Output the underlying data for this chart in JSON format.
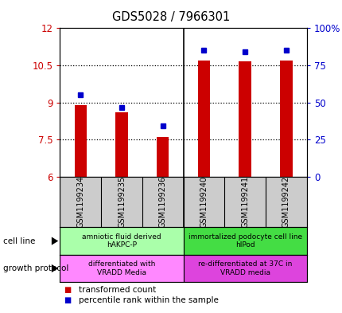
{
  "title": "GDS5028 / 7966301",
  "samples": [
    "GSM1199234",
    "GSM1199235",
    "GSM1199236",
    "GSM1199240",
    "GSM1199241",
    "GSM1199242"
  ],
  "transformed_count": [
    8.9,
    8.6,
    7.6,
    10.7,
    10.65,
    10.7
  ],
  "percentile_rank": [
    9.3,
    8.8,
    8.05,
    11.1,
    11.05,
    11.1
  ],
  "bar_bottom": 6.0,
  "ylim_left": [
    6,
    12
  ],
  "ylim_right": [
    0,
    100
  ],
  "yticks_left": [
    6,
    7.5,
    9,
    10.5,
    12
  ],
  "ytick_labels_left": [
    "6",
    "7.5",
    "9",
    "10.5",
    "12"
  ],
  "yticks_right_vals": [
    0,
    25,
    50,
    75,
    100
  ],
  "ytick_labels_right": [
    "0",
    "25",
    "50",
    "75",
    "100%"
  ],
  "bar_color": "#cc0000",
  "dot_color": "#0000cc",
  "cell_line_groups": [
    {
      "label": "amniotic fluid derived\nhAKPC-P",
      "color": "#aaffaa",
      "start": 0,
      "end": 3
    },
    {
      "label": "immortalized podocyte cell line\nhIPod",
      "color": "#44dd44",
      "start": 3,
      "end": 6
    }
  ],
  "growth_protocol_groups": [
    {
      "label": "differentiated with\nVRADD Media",
      "color": "#ff88ff",
      "start": 0,
      "end": 3
    },
    {
      "label": "re-differentiated at 37C in\nVRADD media",
      "color": "#dd44dd",
      "start": 3,
      "end": 6
    }
  ],
  "sample_box_color": "#cccccc",
  "left_ylabel_color": "#cc0000",
  "right_ylabel_color": "#0000cc",
  "left_side_labels": [
    "cell line",
    "growth protocol"
  ],
  "legend_items": [
    {
      "label": "transformed count",
      "color": "#cc0000",
      "marker": "s"
    },
    {
      "label": "percentile rank within the sample",
      "color": "#0000cc",
      "marker": "s"
    }
  ]
}
